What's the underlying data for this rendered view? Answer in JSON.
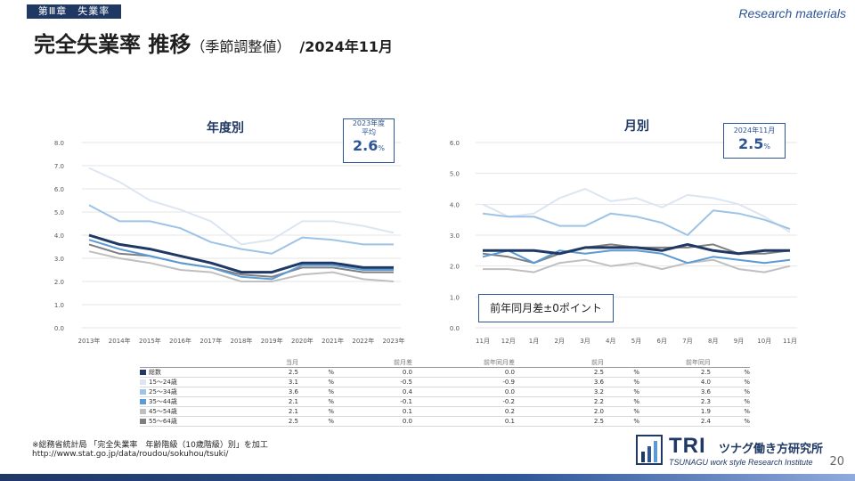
{
  "header": {
    "chapter": "第Ⅲ章　失業率",
    "research": "Research materials",
    "title_main": "完全失業率 推移",
    "title_sub": "（季節調整値）",
    "title_date": "/2024年11月"
  },
  "colors": {
    "total": "#1f3864",
    "age_15_24": "#dce6f2",
    "age_25_34": "#9dc3e6",
    "age_35_44": "#5b9bd5",
    "age_45_54": "#bfbfbf",
    "age_55_64": "#7f7f7f"
  },
  "annual_box": {
    "caption1": "2023年度",
    "caption2": "平均",
    "value": "2.6",
    "unit": "%"
  },
  "monthly_box": {
    "caption1": "2024年11月",
    "value": "2.5",
    "unit": "%"
  },
  "monthly_note": "前年同月差±0ポイント",
  "chart_data": [
    {
      "type": "line",
      "title": "年度別",
      "categories": [
        "2013年",
        "2014年",
        "2015年",
        "2016年",
        "2017年",
        "2018年",
        "2019年",
        "2020年",
        "2021年",
        "2022年",
        "2023年"
      ],
      "ylim": [
        0,
        8
      ],
      "yticks": [
        "0.0",
        "1.0",
        "2.0",
        "3.0",
        "4.0",
        "5.0",
        "6.0",
        "7.0",
        "8.0"
      ],
      "series": [
        {
          "key": "age_15_24",
          "values": [
            6.9,
            6.3,
            5.5,
            5.1,
            4.6,
            3.6,
            3.8,
            4.6,
            4.6,
            4.4,
            4.1
          ]
        },
        {
          "key": "age_25_34",
          "values": [
            5.3,
            4.6,
            4.6,
            4.3,
            3.7,
            3.4,
            3.2,
            3.9,
            3.8,
            3.6,
            3.6
          ]
        },
        {
          "key": "age_45_54",
          "values": [
            3.3,
            3.0,
            2.8,
            2.5,
            2.4,
            2.0,
            2.0,
            2.3,
            2.4,
            2.1,
            2.0
          ]
        },
        {
          "key": "age_55_64",
          "values": [
            3.6,
            3.2,
            3.1,
            2.8,
            2.6,
            2.3,
            2.2,
            2.6,
            2.6,
            2.4,
            2.4
          ]
        },
        {
          "key": "age_35_44",
          "values": [
            3.8,
            3.4,
            3.1,
            2.8,
            2.6,
            2.2,
            2.1,
            2.7,
            2.7,
            2.5,
            2.5
          ]
        },
        {
          "key": "total",
          "values": [
            4.0,
            3.6,
            3.4,
            3.1,
            2.8,
            2.4,
            2.4,
            2.8,
            2.8,
            2.6,
            2.6
          ]
        }
      ]
    },
    {
      "type": "line",
      "title": "月別",
      "categories": [
        "11月",
        "12月",
        "1月",
        "2月",
        "3月",
        "4月",
        "5月",
        "6月",
        "7月",
        "8月",
        "9月",
        "10月",
        "11月"
      ],
      "ylim": [
        0,
        6
      ],
      "yticks": [
        "0.0",
        "1.0",
        "2.0",
        "3.0",
        "4.0",
        "5.0",
        "6.0"
      ],
      "series": [
        {
          "key": "age_15_24",
          "values": [
            4.0,
            3.6,
            3.7,
            4.2,
            4.5,
            4.1,
            4.2,
            3.9,
            4.3,
            4.2,
            4.0,
            3.6,
            3.1
          ]
        },
        {
          "key": "age_25_34",
          "values": [
            3.7,
            3.6,
            3.6,
            3.3,
            3.3,
            3.7,
            3.6,
            3.4,
            3.0,
            3.8,
            3.7,
            3.5,
            3.2
          ]
        },
        {
          "key": "age_45_54",
          "values": [
            1.9,
            1.9,
            1.8,
            2.1,
            2.2,
            2.0,
            2.1,
            1.9,
            2.1,
            2.2,
            1.9,
            1.8,
            2.0
          ]
        },
        {
          "key": "age_55_64",
          "values": [
            2.4,
            2.3,
            2.1,
            2.4,
            2.6,
            2.7,
            2.6,
            2.6,
            2.6,
            2.7,
            2.4,
            2.4,
            2.5
          ]
        },
        {
          "key": "age_35_44",
          "values": [
            2.3,
            2.5,
            2.1,
            2.5,
            2.4,
            2.5,
            2.5,
            2.4,
            2.1,
            2.3,
            2.2,
            2.1,
            2.2
          ]
        },
        {
          "key": "total",
          "values": [
            2.5,
            2.5,
            2.5,
            2.4,
            2.6,
            2.6,
            2.6,
            2.5,
            2.7,
            2.5,
            2.4,
            2.5,
            2.5
          ]
        }
      ]
    }
  ],
  "table": {
    "headers": [
      "",
      "当月",
      "",
      "前月差",
      "前年同月差",
      "前月",
      "",
      "前年同月",
      ""
    ],
    "rows": [
      {
        "key": "total",
        "label": "総数",
        "current": "2.5",
        "u1": "%",
        "mom": "0.0",
        "yoy": "0.0",
        "prev": "2.5",
        "u2": "%",
        "prev_year": "2.5",
        "u3": "%"
      },
      {
        "key": "age_15_24",
        "label": "15～24歳",
        "current": "3.1",
        "u1": "%",
        "mom": "-0.5",
        "yoy": "-0.9",
        "prev": "3.6",
        "u2": "%",
        "prev_year": "4.0",
        "u3": "%"
      },
      {
        "key": "age_25_34",
        "label": "25～34歳",
        "current": "3.6",
        "u1": "%",
        "mom": "0.4",
        "yoy": "0.0",
        "prev": "3.2",
        "u2": "%",
        "prev_year": "3.6",
        "u3": "%"
      },
      {
        "key": "age_35_44",
        "label": "35～44歳",
        "current": "2.1",
        "u1": "%",
        "mom": "-0.1",
        "yoy": "-0.2",
        "prev": "2.2",
        "u2": "%",
        "prev_year": "2.3",
        "u3": "%"
      },
      {
        "key": "age_45_54",
        "label": "45～54歳",
        "current": "2.1",
        "u1": "%",
        "mom": "0.1",
        "yoy": "0.2",
        "prev": "2.0",
        "u2": "%",
        "prev_year": "1.9",
        "u3": "%"
      },
      {
        "key": "age_55_64",
        "label": "55～64歳",
        "current": "2.5",
        "u1": "%",
        "mom": "0.0",
        "yoy": "0.1",
        "prev": "2.5",
        "u2": "%",
        "prev_year": "2.4",
        "u3": "%"
      }
    ]
  },
  "footer": {
    "source": "※総務省統計局 「完全失業率　年齢階級（10歳階級）別」を加工",
    "url": "http://www.stat.go.jp/data/roudou/sokuhou/tsuki/",
    "logo_tri": "TRI",
    "logo_jp": "ツナグ働き方研究所",
    "logo_en": "TSUNAGU work style Research Institute",
    "page": "20"
  }
}
